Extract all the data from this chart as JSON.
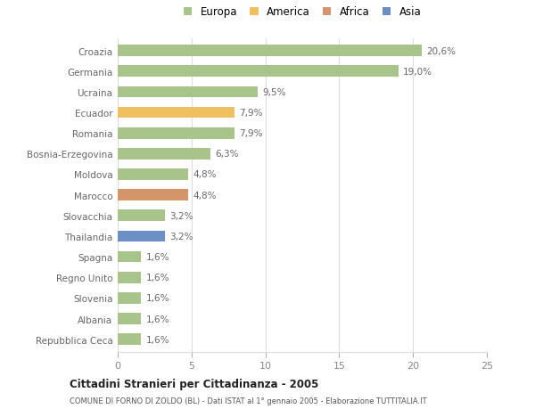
{
  "categories": [
    "Repubblica Ceca",
    "Albania",
    "Slovenia",
    "Regno Unito",
    "Spagna",
    "Thailandia",
    "Slovacchia",
    "Marocco",
    "Moldova",
    "Bosnia-Erzegovina",
    "Romania",
    "Ecuador",
    "Ucraina",
    "Germania",
    "Croazia"
  ],
  "values": [
    1.6,
    1.6,
    1.6,
    1.6,
    1.6,
    3.2,
    3.2,
    4.8,
    4.8,
    6.3,
    7.9,
    7.9,
    9.5,
    19.0,
    20.6
  ],
  "labels": [
    "1,6%",
    "1,6%",
    "1,6%",
    "1,6%",
    "1,6%",
    "3,2%",
    "3,2%",
    "4,8%",
    "4,8%",
    "6,3%",
    "7,9%",
    "7,9%",
    "9,5%",
    "19,0%",
    "20,6%"
  ],
  "colors": [
    "#a8c48a",
    "#a8c48a",
    "#a8c48a",
    "#a8c48a",
    "#a8c48a",
    "#6b8fc4",
    "#a8c48a",
    "#d4956a",
    "#a8c48a",
    "#a8c48a",
    "#a8c48a",
    "#f0c060",
    "#a8c48a",
    "#a8c48a",
    "#a8c48a"
  ],
  "legend_labels": [
    "Europa",
    "America",
    "Africa",
    "Asia"
  ],
  "legend_colors": [
    "#a8c48a",
    "#f0c060",
    "#d4956a",
    "#6b8fc4"
  ],
  "title": "Cittadini Stranieri per Cittadinanza - 2005",
  "subtitle": "COMUNE DI FORNO DI ZOLDO (BL) - Dati ISTAT al 1° gennaio 2005 - Elaborazione TUTTITALIA.IT",
  "xlim": [
    0,
    25
  ],
  "xticks": [
    0,
    5,
    10,
    15,
    20,
    25
  ],
  "bg_color": "#ffffff",
  "grid_color": "#dddddd",
  "bar_height": 0.55
}
